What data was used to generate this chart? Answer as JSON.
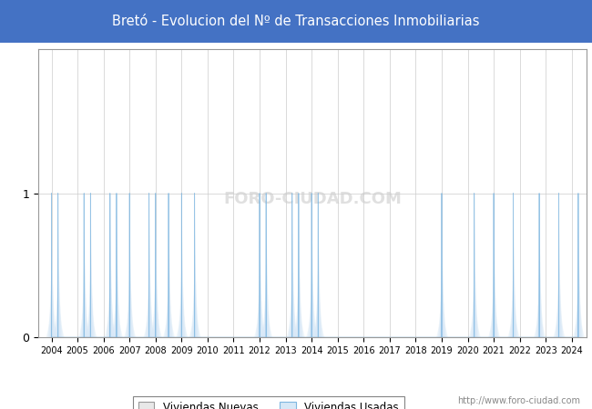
{
  "title": "Bretó - Evolucion del Nº de Transacciones Inmobiliarias",
  "title_bg_color": "#4472C4",
  "title_text_color": "#FFFFFF",
  "ylim": [
    0,
    2
  ],
  "xstart": 2004,
  "xend": 2024,
  "color_fill": "#D6E8F7",
  "color_line": "#7EB6E0",
  "watermark": "FORO-CIUDAD.COM",
  "footer_url": "http://www.foro-ciudad.com",
  "legend_label_nuevas": "Viviendas Nuevas",
  "legend_label_usadas": "Viviendas Usadas",
  "nuevas_data": [
    0,
    1,
    0,
    0,
    0,
    1,
    0,
    0,
    0,
    1,
    0,
    0,
    0,
    0,
    0,
    0,
    1,
    0,
    0,
    0,
    1,
    0,
    0,
    0,
    0,
    0,
    0,
    0,
    0,
    0,
    0,
    0,
    0,
    1,
    0,
    0,
    0,
    1,
    0,
    0,
    0,
    1,
    0,
    0,
    0,
    0,
    0,
    0,
    0,
    0,
    0,
    0,
    0,
    0,
    0,
    0,
    0,
    0,
    0,
    0,
    0,
    0,
    0,
    0,
    0,
    0,
    0,
    0,
    0,
    0,
    0,
    0,
    0,
    0,
    0,
    0,
    0,
    0,
    0,
    0,
    0,
    0
  ],
  "usadas_data": [
    1,
    0,
    0,
    0,
    0,
    0,
    1,
    0,
    0,
    0,
    1,
    0,
    1,
    0,
    0,
    1,
    0,
    0,
    1,
    0,
    0,
    0,
    1,
    0,
    0,
    0,
    0,
    0,
    0,
    0,
    0,
    0,
    1,
    0,
    0,
    0,
    0,
    0,
    1,
    0,
    1,
    0,
    0,
    0,
    0,
    0,
    0,
    0,
    0,
    0,
    0,
    0,
    0,
    0,
    0,
    0,
    0,
    0,
    0,
    0,
    1,
    0,
    0,
    0,
    0,
    1,
    0,
    0,
    1,
    0,
    0,
    1,
    0,
    0,
    0,
    1,
    0,
    0,
    1,
    0,
    0,
    1
  ]
}
